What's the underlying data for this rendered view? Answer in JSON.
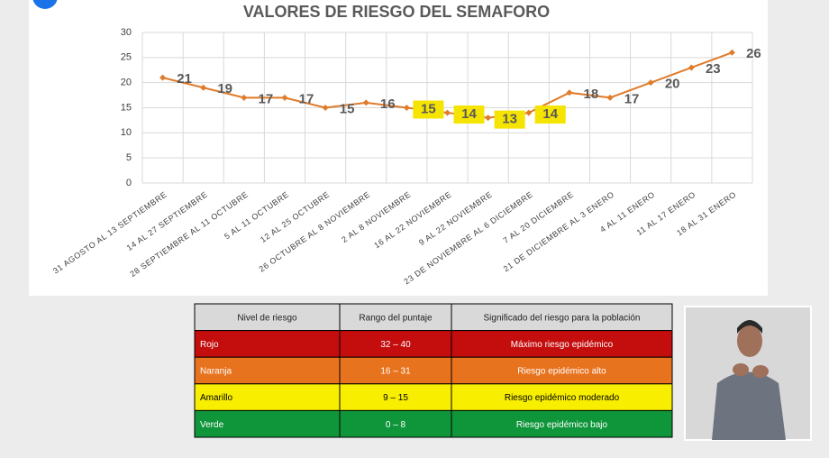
{
  "chart_data": {
    "type": "line",
    "title": "VALORES DE RIESGO DEL SEMAFORO",
    "categories": [
      "31 AGOSTO AL 13 SEPTIEMBRE",
      "14 AL 27 SEPTIEMBRE",
      "28 SEPTIEMBRE AL 11 OCTUBRE",
      "5 AL 11 OCTUBRE",
      "12 AL 25 OCTUBRE",
      "26 OCTUBRE AL 8 NOVIEMBRE",
      "2 AL 8 NOVIEMBRE",
      "16 AL 22 NOVIEMBRE",
      "9 AL 22 NOVIEMBRE",
      "23 DE NOVIEMBRE AL 6 DICIEMBRE",
      "7 AL 20 DICIEMBRE",
      "21 DE DICIEMBRE AL 3 ENERO",
      "4 AL 11 ENERO",
      "11 AL 17 ENERO",
      "18 AL 31 ENERO"
    ],
    "values": [
      21,
      19,
      17,
      17,
      15,
      16,
      15,
      14,
      13,
      14,
      18,
      17,
      20,
      23,
      26
    ],
    "color": "#e07b2a",
    "ylim": [
      0,
      30
    ],
    "yticks": [
      0,
      5,
      10,
      15,
      20,
      25,
      30
    ],
    "grid": true,
    "boxed_labels": [
      6,
      7,
      8,
      9
    ],
    "label_box_color": "#f5e400"
  },
  "table": {
    "header": [
      "Nivel de riesgo",
      "Rango del puntaje",
      "Significado del riesgo para la población"
    ],
    "rows": [
      [
        "Rojo",
        "32 – 40",
        "Máximo riesgo epidémico"
      ],
      [
        "Naranja",
        "16 – 31",
        "Riesgo epidémico alto"
      ],
      [
        "Amarillo",
        "9 – 15",
        "Riesgo epidémico moderado"
      ],
      [
        "Verde",
        "0 – 8",
        "Riesgo epidémico bajo"
      ]
    ],
    "row_colors": [
      "#c40d0d",
      "#e8731f",
      "#f7ee00",
      "#0f953a"
    ],
    "row_text_colors": [
      "#ffffff",
      "#ffffff",
      "#000000",
      "#ffffff"
    ]
  }
}
